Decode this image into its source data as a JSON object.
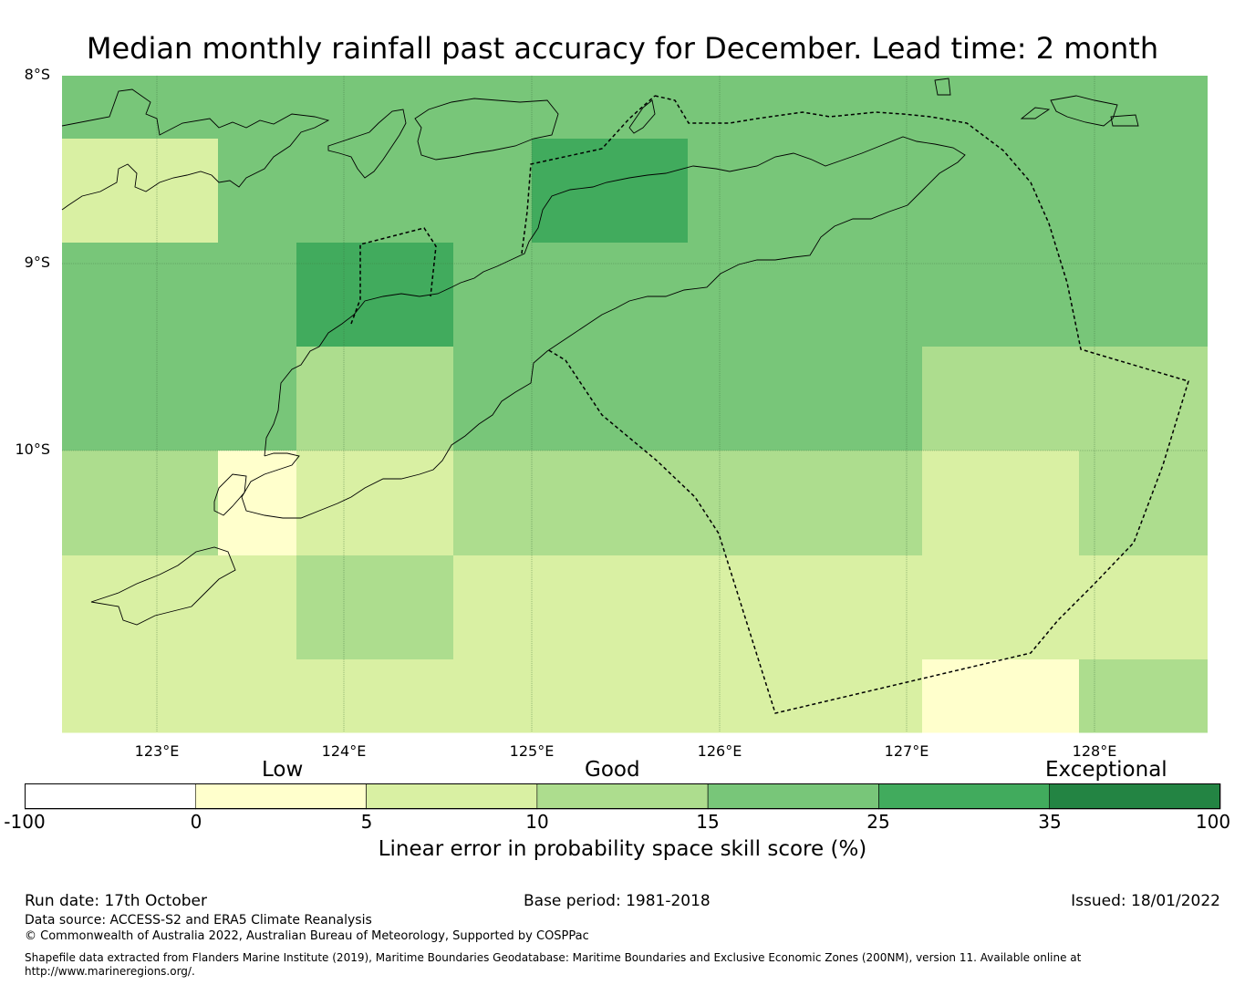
{
  "title": "Median monthly rainfall past accuracy for December. Lead time: 2 month",
  "map": {
    "latitude_labels": [
      "8°S",
      "9°S",
      "10°S"
    ],
    "longitude_labels": [
      "123°E",
      "124°E",
      "125°E",
      "126°E",
      "127°E",
      "128°E"
    ],
    "grid_cell_categories": [
      [
        4,
        4,
        4,
        4,
        4,
        4,
        4,
        4,
        4,
        4,
        4,
        4,
        4,
        4
      ],
      [
        2,
        2,
        4,
        4,
        4,
        4,
        5,
        5,
        4,
        4,
        4,
        4,
        4,
        4
      ],
      [
        4,
        4,
        4,
        5,
        5,
        4,
        4,
        4,
        4,
        4,
        4,
        4,
        4,
        4
      ],
      [
        4,
        4,
        4,
        3,
        3,
        4,
        4,
        4,
        4,
        4,
        4,
        3,
        3,
        3
      ],
      [
        3,
        3,
        1,
        2,
        2,
        3,
        3,
        3,
        3,
        3,
        3,
        2,
        2,
        3
      ],
      [
        2,
        2,
        2,
        3,
        3,
        2,
        2,
        2,
        2,
        2,
        2,
        2,
        2,
        2
      ],
      [
        2,
        2,
        2,
        2,
        2,
        2,
        2,
        2,
        2,
        2,
        2,
        1,
        1,
        3
      ]
    ]
  },
  "colorbar": {
    "categories": [
      "Low",
      "Good",
      "Exceptional"
    ],
    "ticks": [
      "-100",
      "0",
      "5",
      "10",
      "15",
      "25",
      "35",
      "100"
    ],
    "colors": [
      "#ffffff",
      "#ffffcc",
      "#d9f0a3",
      "#addd8e",
      "#78c679",
      "#41ab5d",
      "#238443"
    ],
    "label": "Linear error in probability space skill score (%)"
  },
  "footer": {
    "run_date": "Run date: 17th October",
    "base_period": "Base period: 1981-2018",
    "issued": "Issued: 18/01/2022",
    "data_source": "Data source: ACCESS-S2 and ERA5 Climate Reanalysis",
    "copyright": "© Commonwealth of Australia 2022, Australian Bureau of Meteorology, Supported by COSPPac",
    "shapefile_line1": "Shapefile data extracted from Flanders Marine Institute (2019), Maritime Boundaries Geodatabase: Maritime Boundaries and Exclusive Economic Zones (200NM), version 11. Available online at",
    "shapefile_line2": "http://www.marineregions.org/."
  }
}
